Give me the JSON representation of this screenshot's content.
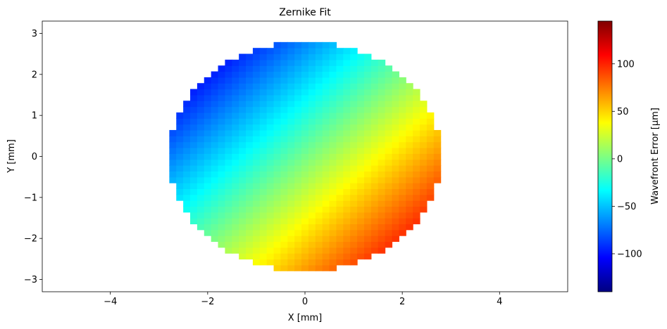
{
  "chart_data": {
    "type": "heatmap",
    "title": "Zernike Fit",
    "xlabel": "X [mm]",
    "ylabel": "Y [mm]",
    "colorbar_label": "Wavefront Error [µm]",
    "colormap": "jet",
    "xlim": [
      -5.4,
      5.4
    ],
    "ylim": [
      -3.3,
      3.3
    ],
    "xticks": [
      -4,
      -2,
      0,
      2,
      4
    ],
    "xtick_labels": [
      "−4",
      "−2",
      "0",
      "2",
      "4"
    ],
    "yticks": [
      -3,
      -2,
      -1,
      0,
      1,
      2,
      3
    ],
    "ytick_labels": [
      "−3",
      "−2",
      "−1",
      "0",
      "1",
      "2",
      "3"
    ],
    "aperture_radius": 2.8,
    "pixel_size": 0.143,
    "surface_model": "tilt",
    "surface": {
      "a_x": 25.0,
      "a_y": -24.0,
      "c": 0
    },
    "clim": [
      -140,
      145
    ],
    "colorbar_ticks": [
      -100,
      -50,
      0,
      50,
      100
    ],
    "colorbar_tick_labels": [
      "−100",
      "−50",
      "0",
      "50",
      "100"
    ],
    "grid": false
  }
}
